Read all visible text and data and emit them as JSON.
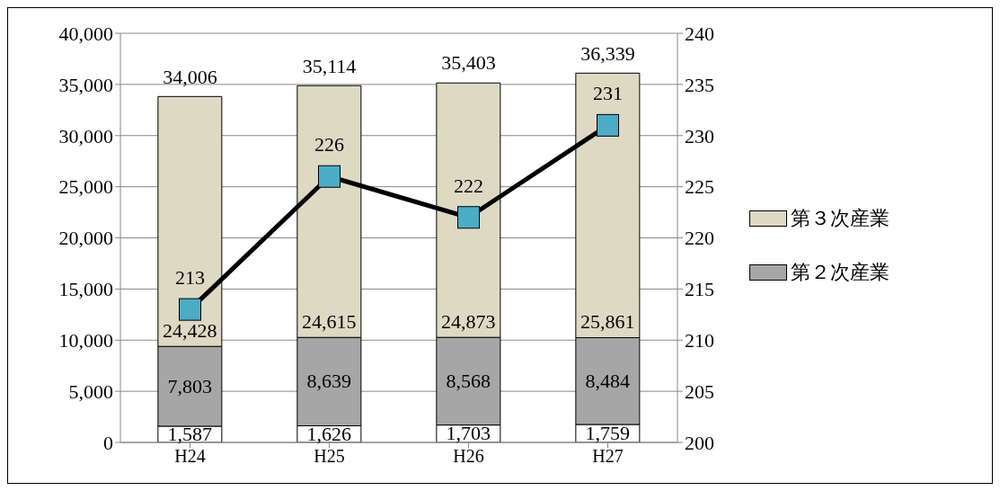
{
  "chart_data": {
    "type": "bar",
    "stacked": true,
    "categories": [
      "H24",
      "H25",
      "H26",
      "H27"
    ],
    "series": [
      {
        "color": "#ffffff",
        "values": [
          1587,
          1626,
          1703,
          1759
        ],
        "value_labels": [
          "1,587",
          "1,626",
          "1,703",
          "1,759"
        ]
      },
      {
        "name": "第２次産業",
        "color": "#a6a6a6",
        "values": [
          7803,
          8639,
          8568,
          8484
        ],
        "value_labels": [
          "7,803",
          "8,639",
          "8,568",
          "8,484"
        ]
      },
      {
        "name": "第３次産業",
        "color": "#ddd9c3",
        "values": [
          24428,
          24615,
          24873,
          25861
        ],
        "value_labels": [
          "24,428",
          "24,615",
          "24,873",
          "25,861"
        ]
      },
      {
        "type": "line",
        "axis": "y2",
        "color": "#000000",
        "values": [
          213,
          226,
          222,
          231
        ]
      }
    ],
    "annotations": [
      {
        "text": "34,006",
        "x": "H24",
        "y": 34006
      },
      {
        "text": "35,114",
        "x": "H25",
        "y": 35114
      },
      {
        "text": "35,403",
        "x": "H26",
        "y": 35403
      },
      {
        "text": "36,339",
        "x": "H27",
        "y": 36339
      }
    ],
    "data_labels": true,
    "marker": "square",
    "line_style": "solid",
    "ylim": [
      0,
      40000
    ],
    "yticks": [
      0,
      {
        "value": 5000,
        "label": "5,000"
      },
      {
        "value": 10000,
        "label": "10,000"
      },
      {
        "value": 15000,
        "label": "15,000"
      },
      {
        "value": 20000,
        "label": "20,000"
      },
      {
        "value": 25000,
        "label": "25,000"
      },
      {
        "value": 30000,
        "label": "30,000"
      },
      {
        "value": 35000,
        "label": "35,000"
      },
      {
        "value": 40000,
        "label": "40,000"
      }
    ],
    "y2lim": [
      200,
      240
    ],
    "y2ticks": [
      200,
      205,
      210,
      215,
      220,
      225,
      230,
      235,
      240
    ],
    "grid": "y",
    "legend": "right"
  }
}
